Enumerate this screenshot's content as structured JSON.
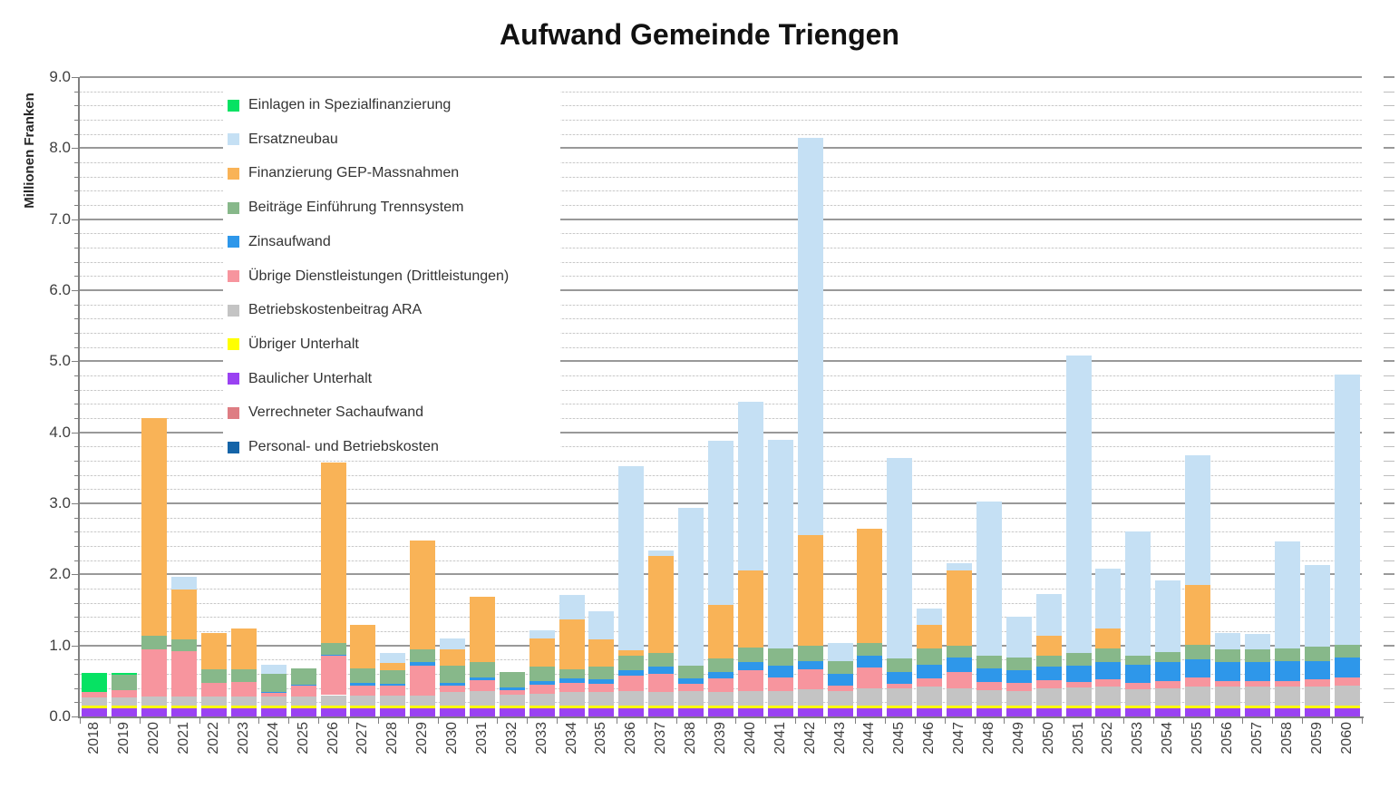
{
  "title": "Aufwand Gemeinde Triengen",
  "y_axis": {
    "label": "Millionen Franken",
    "min": 0.0,
    "max": 9.0,
    "major_step": 1.0,
    "minor_step": 0.2,
    "tick_labels": [
      "0.0",
      "1.0",
      "2.0",
      "3.0",
      "4.0",
      "5.0",
      "6.0",
      "7.0",
      "8.0",
      "9.0"
    ]
  },
  "chart_data": {
    "type": "bar",
    "stacked": true,
    "title": "Aufwand Gemeinde Triengen",
    "xlabel": "",
    "ylabel": "Millionen Franken",
    "ylim": [
      0.0,
      9.0
    ],
    "grid": "horizontal, minor every 0.2, major every 1.0",
    "legend_position": "inside upper-left, order top-to-bottom is reverse of stack order",
    "categories": [
      "2018",
      "2019",
      "2020",
      "2021",
      "2022",
      "2023",
      "2024",
      "2025",
      "2026",
      "2027",
      "2028",
      "2029",
      "2030",
      "2031",
      "2032",
      "2033",
      "2034",
      "2035",
      "2036",
      "2037",
      "2038",
      "2039",
      "2040",
      "2041",
      "2042",
      "2043",
      "2044",
      "2045",
      "2046",
      "2047",
      "2048",
      "2049",
      "2050",
      "2051",
      "2052",
      "2053",
      "2054",
      "2055",
      "2056",
      "2057",
      "2058",
      "2059",
      "2060"
    ],
    "series": [
      {
        "name": "Personal- und Betriebskosten",
        "color": "#1464A8",
        "pattern": "solid",
        "values": [
          0,
          0,
          0,
          0,
          0,
          0,
          0,
          0,
          0,
          0,
          0,
          0,
          0,
          0,
          0,
          0,
          0,
          0,
          0,
          0,
          0,
          0,
          0,
          0,
          0,
          0,
          0,
          0,
          0,
          0,
          0,
          0,
          0,
          0,
          0,
          0,
          0,
          0,
          0,
          0,
          0,
          0,
          0
        ]
      },
      {
        "name": "Verrechneter Sachaufwand",
        "color": "#DE7D83",
        "pattern": "solid",
        "values": [
          0,
          0,
          0,
          0,
          0,
          0,
          0,
          0,
          0,
          0,
          0,
          0,
          0,
          0,
          0,
          0,
          0,
          0,
          0,
          0,
          0,
          0,
          0,
          0,
          0,
          0,
          0,
          0,
          0,
          0,
          0,
          0,
          0,
          0,
          0,
          0,
          0,
          0,
          0,
          0,
          0,
          0,
          0
        ]
      },
      {
        "name": "Baulicher Unterhalt",
        "color": "#9A42F2",
        "pattern": "solid",
        "values": [
          0.11,
          0.11,
          0.11,
          0.11,
          0.11,
          0.11,
          0.11,
          0.11,
          0.11,
          0.11,
          0.11,
          0.11,
          0.11,
          0.11,
          0.11,
          0.11,
          0.11,
          0.11,
          0.11,
          0.11,
          0.11,
          0.11,
          0.11,
          0.11,
          0.11,
          0.11,
          0.11,
          0.11,
          0.11,
          0.11,
          0.11,
          0.11,
          0.11,
          0.11,
          0.11,
          0.11,
          0.11,
          0.11,
          0.11,
          0.11,
          0.11,
          0.11,
          0.11
        ]
      },
      {
        "name": "Übriger Unterhalt",
        "color": "#FFFF00",
        "pattern": "solid",
        "values": [
          0.04,
          0.04,
          0.04,
          0.04,
          0.04,
          0.04,
          0.04,
          0.04,
          0.04,
          0.04,
          0.04,
          0.04,
          0.04,
          0.04,
          0.04,
          0.04,
          0.04,
          0.04,
          0.04,
          0.04,
          0.04,
          0.04,
          0.04,
          0.04,
          0.04,
          0.04,
          0.04,
          0.04,
          0.04,
          0.04,
          0.04,
          0.04,
          0.04,
          0.04,
          0.04,
          0.04,
          0.04,
          0.04,
          0.04,
          0.04,
          0.04,
          0.04,
          0.04
        ]
      },
      {
        "name": "Betriebskostenbeitrag ARA",
        "color": "#C4C4C4",
        "pattern": "dots",
        "values": [
          0.12,
          0.12,
          0.13,
          0.13,
          0.13,
          0.13,
          0.13,
          0.13,
          0.15,
          0.14,
          0.14,
          0.14,
          0.19,
          0.21,
          0.16,
          0.17,
          0.19,
          0.19,
          0.21,
          0.2,
          0.21,
          0.19,
          0.21,
          0.21,
          0.23,
          0.21,
          0.24,
          0.24,
          0.27,
          0.24,
          0.22,
          0.21,
          0.25,
          0.26,
          0.27,
          0.23,
          0.25,
          0.27,
          0.27,
          0.27,
          0.27,
          0.27,
          0.28
        ]
      },
      {
        "name": "Übrige Dienstleistungen (Drittleistungen)",
        "color": "#F7959E",
        "pattern": "solid",
        "values": [
          0.07,
          0.1,
          0.66,
          0.64,
          0.19,
          0.2,
          0.05,
          0.15,
          0.55,
          0.15,
          0.15,
          0.43,
          0.1,
          0.15,
          0.06,
          0.13,
          0.13,
          0.12,
          0.21,
          0.25,
          0.1,
          0.19,
          0.29,
          0.19,
          0.28,
          0.07,
          0.3,
          0.07,
          0.12,
          0.23,
          0.11,
          0.11,
          0.11,
          0.08,
          0.1,
          0.09,
          0.1,
          0.13,
          0.08,
          0.08,
          0.08,
          0.1,
          0.12
        ]
      },
      {
        "name": "Zinsaufwand",
        "color": "#2E97EA",
        "pattern": "solid",
        "values": [
          0,
          0,
          0,
          0,
          0,
          0,
          0.02,
          0.02,
          0.02,
          0.03,
          0.02,
          0.05,
          0.03,
          0.04,
          0.04,
          0.05,
          0.07,
          0.06,
          0.08,
          0.1,
          0.07,
          0.1,
          0.12,
          0.17,
          0.12,
          0.17,
          0.16,
          0.17,
          0.19,
          0.21,
          0.2,
          0.18,
          0.19,
          0.23,
          0.25,
          0.26,
          0.26,
          0.26,
          0.26,
          0.26,
          0.28,
          0.26,
          0.28
        ]
      },
      {
        "name": "Beiträge Einführung Trennsystem",
        "color": "#87B88A",
        "pattern": "solid",
        "values": [
          0,
          0.22,
          0.2,
          0.17,
          0.19,
          0.19,
          0.25,
          0.23,
          0.17,
          0.21,
          0.19,
          0.17,
          0.25,
          0.21,
          0.21,
          0.2,
          0.12,
          0.18,
          0.21,
          0.19,
          0.19,
          0.19,
          0.2,
          0.24,
          0.21,
          0.18,
          0.18,
          0.19,
          0.23,
          0.16,
          0.18,
          0.18,
          0.15,
          0.17,
          0.19,
          0.13,
          0.15,
          0.2,
          0.18,
          0.18,
          0.18,
          0.2,
          0.18
        ]
      },
      {
        "name": "Finanzierung GEP-Massnahmen",
        "color": "#F9B357",
        "pattern": "solid",
        "values": [
          0,
          0,
          3.06,
          0.7,
          0.52,
          0.57,
          0,
          0,
          2.53,
          0.61,
          0.1,
          1.54,
          0.23,
          0.92,
          0,
          0.4,
          0.7,
          0.38,
          0.07,
          1.37,
          0,
          0.75,
          1.08,
          0,
          1.56,
          0,
          1.61,
          0,
          0.33,
          1.06,
          0,
          0,
          0.28,
          0,
          0.28,
          0,
          0,
          0.84,
          0,
          0,
          0,
          0,
          0
        ]
      },
      {
        "name": "Ersatzneubau",
        "color": "#C5E0F4",
        "pattern": "solid",
        "values": [
          0,
          0,
          0,
          0.17,
          0,
          0,
          0.13,
          0,
          0,
          0,
          0.14,
          0,
          0.15,
          0,
          0,
          0.11,
          0.35,
          0.4,
          2.59,
          0.07,
          2.22,
          2.31,
          2.38,
          2.93,
          5.59,
          0.26,
          0,
          2.82,
          0.23,
          0.11,
          2.16,
          0.57,
          0.59,
          4.19,
          0.84,
          1.75,
          1.0,
          1.83,
          0.24,
          0.22,
          1.5,
          1.15,
          3.8
        ]
      },
      {
        "name": "Einlagen in Spezialfinanzierung",
        "color": "#06E263",
        "pattern": "solid",
        "values": [
          0.27,
          0.02,
          0,
          0,
          0,
          0,
          0,
          0,
          0,
          0,
          0,
          0,
          0,
          0,
          0,
          0,
          0,
          0,
          0,
          0,
          0,
          0,
          0,
          0,
          0,
          0,
          0,
          0,
          0,
          0,
          0,
          0,
          0,
          0,
          0,
          0,
          0,
          0,
          0,
          0,
          0,
          0,
          0
        ]
      }
    ],
    "totals_note": "stack totals (Mio. Franken), e.g. 2018:0.61, 2020:4.20, 2026:3.57, 2042:8.14, 2051:5.08, 2060:4.81"
  }
}
